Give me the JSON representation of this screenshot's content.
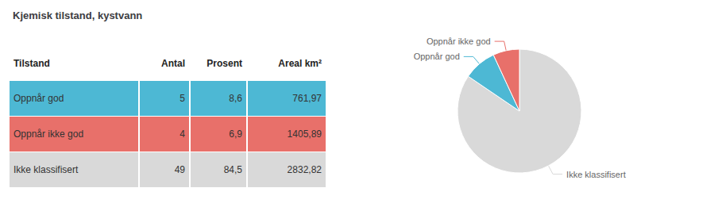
{
  "chart_data": [
    {
      "type": "pie",
      "title": "Kjemisk tilstand, kystvann",
      "categories": [
        "Ikke klassifisert",
        "Oppnår god",
        "Oppnår ikke god"
      ],
      "values": [
        84.5,
        8.6,
        6.9
      ],
      "colors": [
        "#d9d9d9",
        "#4db8d4",
        "#e8706a"
      ]
    },
    {
      "type": "table",
      "columns": [
        "Tilstand",
        "Antal",
        "Prosent",
        "Areal km²"
      ],
      "categories": [
        "Oppnår god",
        "Oppnår ikke god",
        "Ikke klassifisert"
      ],
      "series": [
        {
          "values": [
            5,
            4,
            49
          ]
        },
        {
          "values": [
            8.6,
            6.9,
            84.5
          ],
          "value_labels": [
            "8,6",
            "6,9",
            "84,5"
          ]
        },
        {
          "values": [
            761.97,
            1405.89,
            2832.82
          ],
          "value_labels": [
            "761,97",
            "1405,89",
            "2832,82"
          ]
        }
      ],
      "colors": [
        "#4db8d4",
        "#e8706a",
        "#d9d9d9"
      ]
    }
  ]
}
